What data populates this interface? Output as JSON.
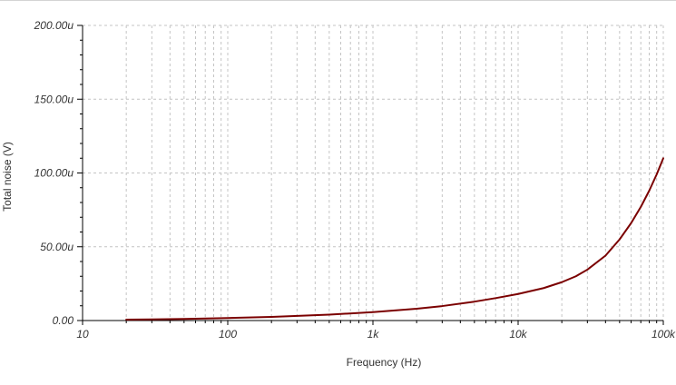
{
  "chart_data": {
    "type": "line",
    "xlabel": "Frequency (Hz)",
    "ylabel": "Total noise (V)",
    "x_scale": "log",
    "xlim": [
      10,
      100000
    ],
    "ylim": [
      0,
      0.0002
    ],
    "x_ticks": [
      {
        "value": 10,
        "label": "10"
      },
      {
        "value": 100,
        "label": "100"
      },
      {
        "value": 1000,
        "label": "1k"
      },
      {
        "value": 10000,
        "label": "10k"
      },
      {
        "value": 100000,
        "label": "100k"
      }
    ],
    "y_ticks": [
      {
        "value": 0,
        "label": "0.00"
      },
      {
        "value": 5e-05,
        "label": "50.00u"
      },
      {
        "value": 0.0001,
        "label": "100.00u"
      },
      {
        "value": 0.00015,
        "label": "150.00u"
      },
      {
        "value": 0.0002,
        "label": "200.00u"
      }
    ],
    "grid": true,
    "series": [
      {
        "color": "#7b0000",
        "x": [
          20,
          30,
          50,
          100,
          200,
          500,
          1000,
          2000,
          3000,
          5000,
          7000,
          10000,
          15000,
          20000,
          25000,
          30000,
          40000,
          50000,
          60000,
          70000,
          80000,
          90000,
          100000
        ],
        "y": [
          6e-07,
          8e-07,
          1.1e-06,
          1.7e-06,
          2.5e-06,
          4e-06,
          5.7e-06,
          8e-06,
          9.8e-06,
          1.28e-05,
          1.52e-05,
          1.8e-05,
          2.2e-05,
          2.6e-05,
          3e-05,
          3.45e-05,
          4.4e-05,
          5.5e-05,
          6.6e-05,
          7.7e-05,
          8.8e-05,
          9.9e-05,
          0.00011
        ]
      }
    ]
  }
}
